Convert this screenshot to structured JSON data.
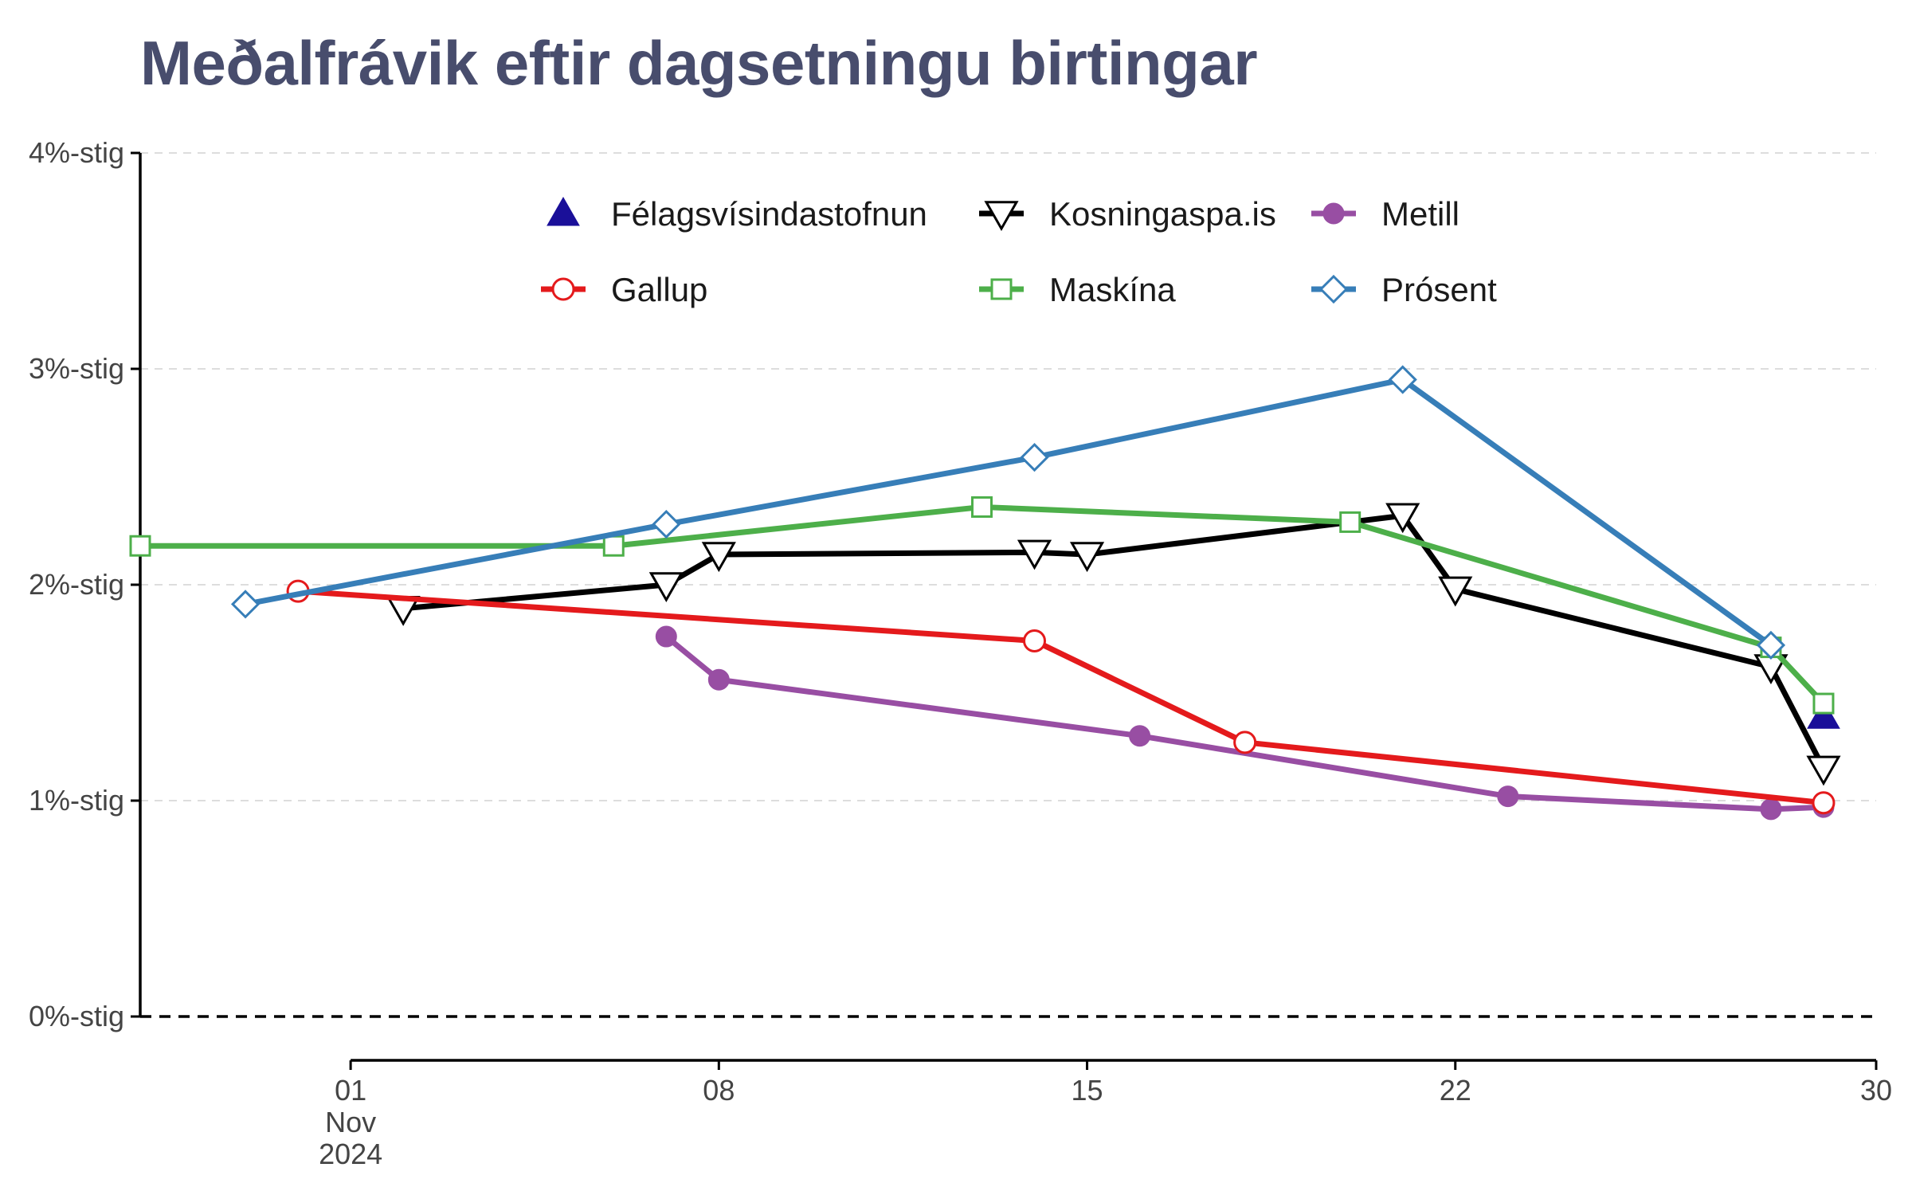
{
  "chart_data": {
    "type": "line",
    "title": "Meðalfrávik eftir dagsetningu birtingar",
    "xlabel": "",
    "ylabel": "",
    "xlim": [
      "2024-10-28",
      "2024-11-30"
    ],
    "ylim": [
      0,
      4
    ],
    "y_ticks": [
      {
        "value": 0,
        "label": "0%-stig"
      },
      {
        "value": 1,
        "label": "1%-stig"
      },
      {
        "value": 2,
        "label": "2%-stig"
      },
      {
        "value": 3,
        "label": "3%-stig"
      },
      {
        "value": 4,
        "label": "4%-stig"
      }
    ],
    "x_ticks": [
      {
        "date": "2024-11-01",
        "label": "01",
        "label2": "Nov",
        "label3": "2024"
      },
      {
        "date": "2024-11-08",
        "label": "08"
      },
      {
        "date": "2024-11-15",
        "label": "15"
      },
      {
        "date": "2024-11-22",
        "label": "22"
      },
      {
        "date": "2024-11-30",
        "label": "30"
      }
    ],
    "grid": "horizontal dashed",
    "reference_line": {
      "value": 0,
      "style": "dashed"
    },
    "legend_position": "top",
    "series": [
      {
        "name": "Félagsvísindastofnun",
        "color": "#1a0f99",
        "marker": "triangle-up-filled",
        "points": [
          {
            "x": "2024-11-29",
            "y": 1.39
          }
        ]
      },
      {
        "name": "Kosningaspa.is",
        "color": "#000000",
        "marker": "triangle-down-open",
        "points": [
          {
            "x": "2024-11-02",
            "y": 1.89
          },
          {
            "x": "2024-11-07",
            "y": 2.0
          },
          {
            "x": "2024-11-08",
            "y": 2.14
          },
          {
            "x": "2024-11-14",
            "y": 2.15
          },
          {
            "x": "2024-11-15",
            "y": 2.14
          },
          {
            "x": "2024-11-21",
            "y": 2.32
          },
          {
            "x": "2024-11-22",
            "y": 1.98
          },
          {
            "x": "2024-11-28",
            "y": 1.62
          },
          {
            "x": "2024-11-29",
            "y": 1.15
          }
        ]
      },
      {
        "name": "Metill",
        "color": "#984ea3",
        "marker": "circle-filled",
        "points": [
          {
            "x": "2024-11-07",
            "y": 1.76
          },
          {
            "x": "2024-11-08",
            "y": 1.56
          },
          {
            "x": "2024-11-16",
            "y": 1.3
          },
          {
            "x": "2024-11-23",
            "y": 1.02
          },
          {
            "x": "2024-11-28",
            "y": 0.96
          },
          {
            "x": "2024-11-29",
            "y": 0.97
          }
        ]
      },
      {
        "name": "Gallup",
        "color": "#e41a1c",
        "marker": "circle-open",
        "points": [
          {
            "x": "2024-10-31",
            "y": 1.97
          },
          {
            "x": "2024-11-14",
            "y": 1.74
          },
          {
            "x": "2024-11-18",
            "y": 1.27
          },
          {
            "x": "2024-11-29",
            "y": 0.99
          }
        ]
      },
      {
        "name": "Maskína",
        "color": "#4daf4a",
        "marker": "square-open",
        "points": [
          {
            "x": "2024-10-28",
            "y": 2.18
          },
          {
            "x": "2024-11-06",
            "y": 2.18
          },
          {
            "x": "2024-11-13",
            "y": 2.36
          },
          {
            "x": "2024-11-20",
            "y": 2.29
          },
          {
            "x": "2024-11-28",
            "y": 1.71
          },
          {
            "x": "2024-11-29",
            "y": 1.45
          }
        ]
      },
      {
        "name": "Prósent",
        "color": "#377eb8",
        "marker": "diamond-open",
        "points": [
          {
            "x": "2024-10-30",
            "y": 1.91
          },
          {
            "x": "2024-11-07",
            "y": 2.28
          },
          {
            "x": "2024-11-14",
            "y": 2.59
          },
          {
            "x": "2024-11-21",
            "y": 2.95
          },
          {
            "x": "2024-11-28",
            "y": 1.72
          }
        ]
      }
    ]
  }
}
